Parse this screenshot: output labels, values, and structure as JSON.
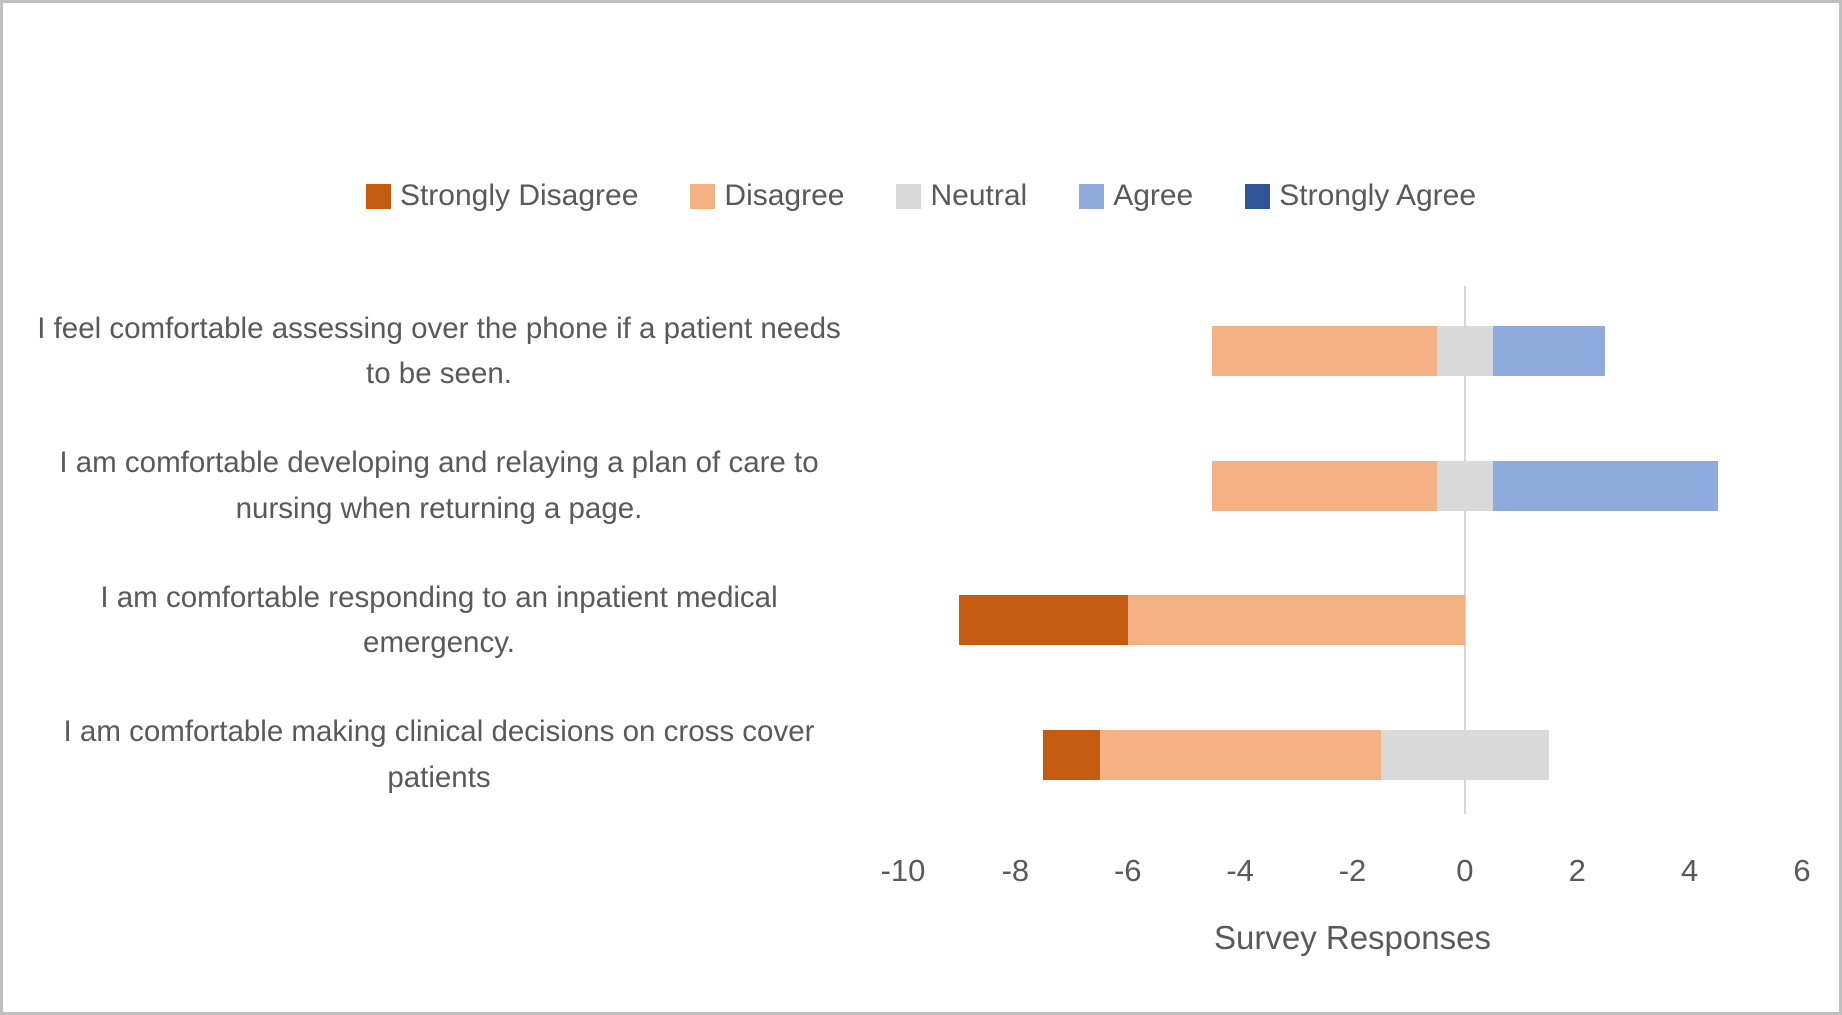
{
  "chart_data": {
    "type": "bar",
    "subtype": "diverging-stacked-horizontal",
    "title": "",
    "xlabel": "Survey Responses",
    "categories": [
      "I feel comfortable assessing over the phone if a patient needs to be seen.",
      "I am comfortable developing and relaying a plan of care to nursing when returning a page.",
      "I am comfortable responding to an inpatient medical emergency.",
      "I am comfortable making clinical decisions on cross cover patients"
    ],
    "series": [
      {
        "name": "Strongly Disagree",
        "color": "#C55A11",
        "values": [
          0,
          0,
          3,
          1
        ]
      },
      {
        "name": "Disagree",
        "color": "#F4B183",
        "values": [
          4,
          4,
          6,
          5
        ]
      },
      {
        "name": "Neutral",
        "color": "#D9D9D9",
        "values": [
          1,
          1,
          0,
          3
        ]
      },
      {
        "name": "Agree",
        "color": "#8FAADC",
        "values": [
          2,
          4,
          0,
          0
        ]
      },
      {
        "name": "Strongly Agree",
        "color": "#2F5597",
        "values": [
          0,
          0,
          0,
          0
        ]
      }
    ],
    "neutral_series": "Neutral",
    "neutral_split_across_zero": true,
    "x_ticks": [
      -10,
      -8,
      -6,
      -4,
      -2,
      0,
      2,
      4,
      6
    ],
    "xlim": [
      -10,
      6
    ],
    "legend_position": "top",
    "gridlines": "zero-only",
    "zero_line_color": "#D6D6D6",
    "text_color": "#595959",
    "border_color": "#BFBFBF",
    "background_color": "#FFFFFF"
  }
}
